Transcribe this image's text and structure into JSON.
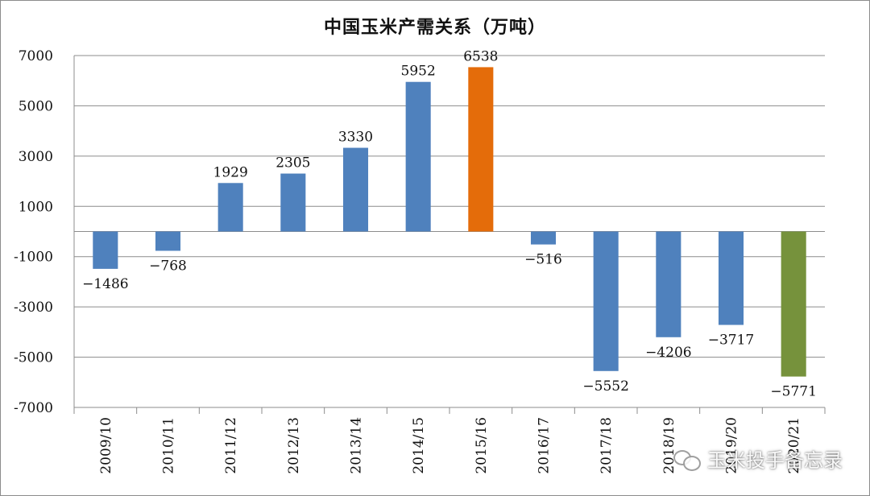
{
  "chart_data": {
    "type": "bar",
    "title": "中国玉米产需关系（万吨）",
    "categories": [
      "2009/10",
      "2010/11",
      "2011/12",
      "2012/13",
      "2013/14",
      "2014/15",
      "2015/16",
      "2016/17",
      "2017/18",
      "2018/19",
      "2019/20",
      "2020/21"
    ],
    "values": [
      -1486,
      -768,
      1929,
      2305,
      3330,
      5952,
      6538,
      -516,
      -5552,
      -4206,
      -3717,
      -5771
    ],
    "bar_colors": [
      "#4f81bd",
      "#4f81bd",
      "#4f81bd",
      "#4f81bd",
      "#4f81bd",
      "#4f81bd",
      "#e46c0a",
      "#4f81bd",
      "#4f81bd",
      "#4f81bd",
      "#4f81bd",
      "#76923c"
    ],
    "yticks": [
      7000,
      5000,
      3000,
      1000,
      -1000,
      -3000,
      -5000,
      -7000
    ],
    "ylim": [
      -7000,
      7000
    ],
    "xlabel": "",
    "ylabel": "",
    "grid": true,
    "legend": "none"
  },
  "watermark": {
    "icon": "wechat-icon",
    "text": "玉米投手备忘录"
  }
}
